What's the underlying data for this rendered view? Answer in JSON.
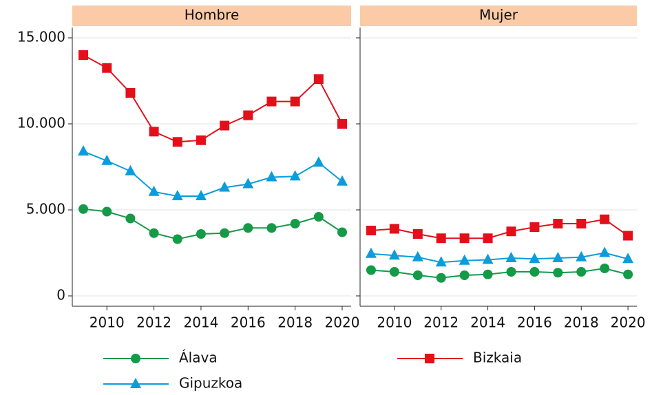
{
  "chart_data": {
    "type": "line",
    "x": [
      2009,
      2010,
      2011,
      2012,
      2013,
      2014,
      2015,
      2016,
      2017,
      2018,
      2019,
      2020
    ],
    "xlim": [
      2008.53,
      2020.38
    ],
    "xticks": [
      2010,
      2012,
      2014,
      2016,
      2018,
      2020
    ],
    "ylim": [
      -600,
      15600
    ],
    "yticks": [
      0,
      {
        "value": 5000,
        "label": "5.000"
      },
      {
        "value": 10000,
        "label": "10.000"
      },
      {
        "value": 15000,
        "label": "15.000"
      }
    ],
    "grid": true,
    "series": [
      {
        "name": "Álava",
        "color": "#159a48",
        "marker": "circle"
      },
      {
        "name": "Gipuzkoa",
        "color": "#0b9ddb",
        "marker": "triangle"
      },
      {
        "name": "Bizkaia",
        "color": "#e3101c",
        "marker": "square"
      }
    ],
    "panels": [
      {
        "title": "Hombre",
        "values": [
          [
            5050,
            4900,
            4500,
            3650,
            3300,
            3600,
            3650,
            3950,
            3950,
            4200,
            4600,
            3700
          ],
          [
            8400,
            7850,
            7250,
            6050,
            5800,
            5800,
            6300,
            6500,
            6900,
            6950,
            7750,
            6650
          ],
          [
            14000,
            13250,
            11800,
            9550,
            8950,
            9050,
            9900,
            10500,
            11300,
            11300,
            12600,
            10000
          ]
        ]
      },
      {
        "title": "Mujer",
        "values": [
          [
            1500,
            1400,
            1200,
            1050,
            1200,
            1250,
            1400,
            1400,
            1350,
            1400,
            1600,
            1250
          ],
          [
            2450,
            2350,
            2250,
            1950,
            2050,
            2100,
            2200,
            2150,
            2200,
            2250,
            2500,
            2150
          ],
          [
            3800,
            3900,
            3600,
            3350,
            3350,
            3350,
            3750,
            4000,
            4200,
            4200,
            4450,
            3500
          ]
        ]
      }
    ]
  }
}
